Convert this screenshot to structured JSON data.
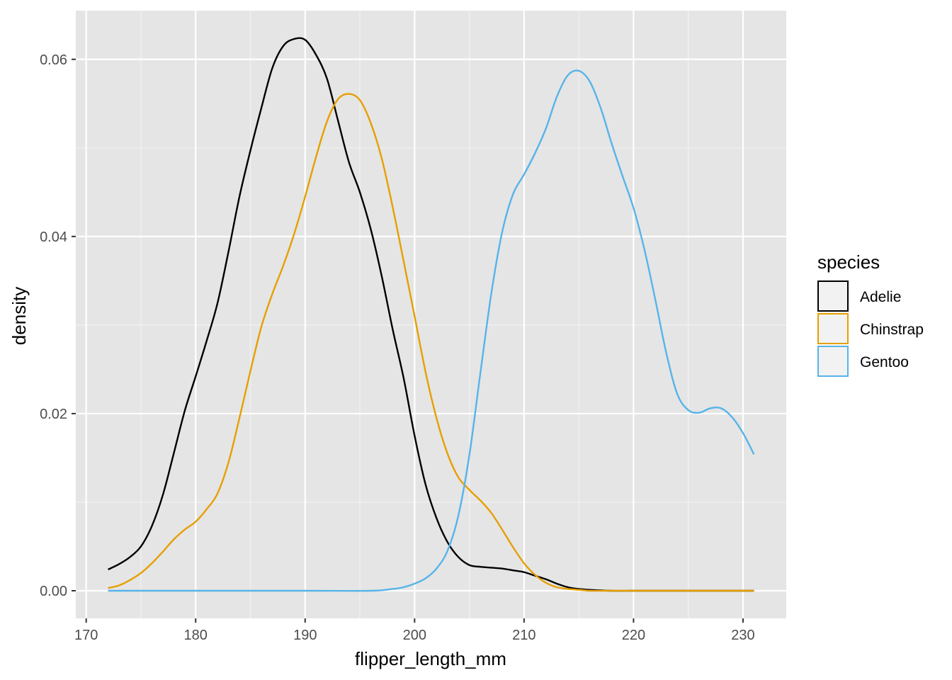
{
  "chart_data": {
    "type": "line",
    "title": "",
    "xlabel": "flipper_length_mm",
    "ylabel": "density",
    "xlim": [
      169.05,
      233.95
    ],
    "ylim": [
      -0.00312,
      0.0655
    ],
    "x_ticks": [
      170,
      180,
      190,
      200,
      210,
      220,
      230
    ],
    "x_tick_labels": [
      "170",
      "180",
      "190",
      "200",
      "210",
      "220",
      "230"
    ],
    "y_ticks": [
      0.0,
      0.02,
      0.04,
      0.06
    ],
    "y_tick_labels": [
      "0.00",
      "0.02",
      "0.04",
      "0.06"
    ],
    "grid": true,
    "legend": {
      "title": "species",
      "position": "right",
      "entries": [
        "Adelie",
        "Chinstrap",
        "Gentoo"
      ]
    },
    "series": [
      {
        "name": "Adelie",
        "color": "#000000",
        "x": [
          172,
          173,
          174,
          175,
          176,
          177,
          178,
          179,
          180,
          181,
          182,
          183,
          184,
          185,
          186,
          187,
          188,
          189,
          190,
          191,
          192,
          193,
          194,
          195,
          196,
          197,
          198,
          199,
          200,
          201,
          202,
          203,
          204,
          205,
          206,
          207,
          208,
          209,
          210,
          211,
          212,
          213,
          214,
          215,
          216,
          218,
          220,
          222,
          224,
          226,
          228,
          231
        ],
        "values": [
          0.0024,
          0.003,
          0.0038,
          0.005,
          0.0073,
          0.0108,
          0.0155,
          0.0203,
          0.0242,
          0.0282,
          0.0325,
          0.0383,
          0.0445,
          0.0497,
          0.0545,
          0.059,
          0.0615,
          0.0623,
          0.0622,
          0.0605,
          0.0578,
          0.0531,
          0.0484,
          0.045,
          0.0408,
          0.0355,
          0.0295,
          0.024,
          0.0175,
          0.012,
          0.0082,
          0.0055,
          0.0038,
          0.0029,
          0.0027,
          0.0026,
          0.0025,
          0.0023,
          0.0021,
          0.0017,
          0.0013,
          0.0008,
          0.0004,
          0.0002,
          0.0001,
          0.0,
          0.0,
          0.0,
          0.0,
          0.0,
          0.0,
          0.0
        ]
      },
      {
        "name": "Chinstrap",
        "color": "#E69F00",
        "x": [
          172,
          173,
          174,
          175,
          176,
          177,
          178,
          179,
          180,
          181,
          182,
          183,
          184,
          185,
          186,
          187,
          188,
          189,
          190,
          191,
          192,
          193,
          194,
          195,
          196,
          197,
          198,
          199,
          200,
          201,
          202,
          203,
          204,
          205,
          206,
          207,
          208,
          209,
          210,
          211,
          212,
          213,
          214,
          215,
          216,
          217,
          218,
          219,
          220,
          222,
          224,
          226,
          228,
          231
        ],
        "values": [
          0.0003,
          0.0006,
          0.0012,
          0.002,
          0.0031,
          0.0044,
          0.0058,
          0.0069,
          0.0078,
          0.0092,
          0.011,
          0.0145,
          0.0195,
          0.0248,
          0.0298,
          0.0335,
          0.0367,
          0.0403,
          0.0445,
          0.049,
          0.053,
          0.0555,
          0.0561,
          0.0554,
          0.0528,
          0.0488,
          0.0433,
          0.0372,
          0.031,
          0.0247,
          0.0195,
          0.0155,
          0.0128,
          0.0114,
          0.0102,
          0.0088,
          0.0069,
          0.0049,
          0.0031,
          0.0018,
          0.0009,
          0.0004,
          0.0002,
          0.0001,
          0.0,
          0.0,
          0.0,
          0.0,
          0.0,
          0.0,
          0.0,
          0.0,
          0.0,
          0.0
        ]
      },
      {
        "name": "Gentoo",
        "color": "#56B4E9",
        "x": [
          172,
          180,
          190,
          196,
          198,
          199,
          200,
          201,
          202,
          203,
          204,
          205,
          206,
          207,
          208,
          209,
          210,
          211,
          212,
          213,
          214,
          215,
          216,
          217,
          218,
          219,
          220,
          221,
          222,
          223,
          224,
          225,
          226,
          227,
          228,
          229,
          230,
          231
        ],
        "values": [
          0.0,
          0.0,
          0.0,
          0.0,
          0.0002,
          0.0004,
          0.0008,
          0.0014,
          0.0025,
          0.0045,
          0.0085,
          0.0153,
          0.0245,
          0.0335,
          0.0405,
          0.0448,
          0.047,
          0.0494,
          0.0522,
          0.0558,
          0.0582,
          0.0587,
          0.0575,
          0.0545,
          0.0505,
          0.0468,
          0.0432,
          0.0385,
          0.0328,
          0.0268,
          0.0222,
          0.0204,
          0.0201,
          0.0206,
          0.0206,
          0.0196,
          0.0178,
          0.0154
        ]
      }
    ]
  }
}
